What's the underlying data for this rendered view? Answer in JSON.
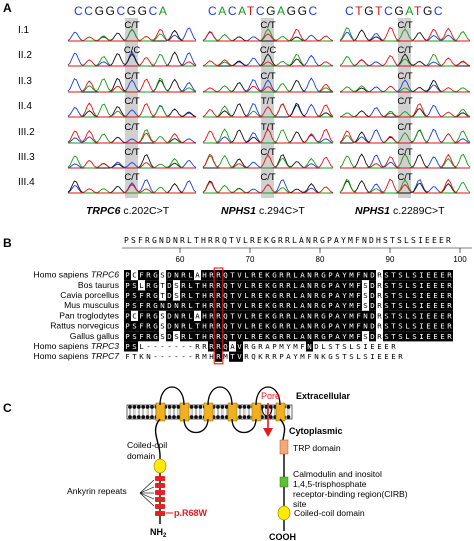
{
  "panels": {
    "a": {
      "letter": "A",
      "sequences": [
        "CCGGCGGCA",
        "CACATCGAGGC",
        "CTGTCGATGC"
      ],
      "row_labels": [
        "I.1",
        "II.2",
        "II.3",
        "II.4",
        "III.2",
        "III.3",
        "III.4"
      ],
      "genotypes": [
        [
          "C/T",
          "C/T",
          "C/T"
        ],
        [
          "C/C",
          "C/C",
          "C/T"
        ],
        [
          "C/T",
          "C/T",
          "C/T"
        ],
        [
          "C/T",
          "T/T",
          "C/T"
        ],
        [
          "C/T",
          "T/T",
          "C/T"
        ],
        [
          "C/T",
          "C/T",
          "C/T"
        ],
        [
          "C/T",
          "C/T",
          "C/T"
        ]
      ],
      "gene_labels": [
        {
          "gene": "TRPC6",
          "variant": "c.202C>T"
        },
        {
          "gene": "NPHS1",
          "variant": "c.294C>T"
        },
        {
          "gene": "NPHS1",
          "variant": "c.2289C>T"
        }
      ]
    },
    "b": {
      "letter": "B",
      "consensus": "PSFRGNDNRLTHRRQTVLREKGRRLANRGPAYMFNDHSTSLSIEEER",
      "ticks": [
        "60",
        "70",
        "80",
        "90",
        "100"
      ],
      "species": [
        {
          "name": "Homo sapiens",
          "gene": "TRPC6"
        },
        {
          "name": "Bos taurus",
          "gene": ""
        },
        {
          "name": "Cavia porcellus",
          "gene": ""
        },
        {
          "name": "Mus musculus",
          "gene": ""
        },
        {
          "name": "Pan troglodytes",
          "gene": ""
        },
        {
          "name": "Rattus norvegicus",
          "gene": ""
        },
        {
          "name": "Gallus gallus",
          "gene": ""
        },
        {
          "name": "Homo sapiens",
          "gene": "TRPC3"
        },
        {
          "name": "Homo sapiens",
          "gene": "TRPC7"
        }
      ],
      "alignment": [
        "PCFRGSDNRLAHRRQTVLREKGRRLANRGPAYMFNDRSTSLSIEEER",
        "PSLRGTDSRLTHRRQTVLREKGRRLANRGPAYMFSDRSTSLSIEEER",
        "PSFRGTDSRLTHRRQTVLREKGRRLANRGPAYMFSDRSTSLSIEEER",
        "PSFRGNDNRLTHRRQTVLREKGRRLANRGPAYMFSDRSTSLSIEEER",
        "PCFRGSDNRLAHRRQTVLREKGRRLANRGPAYMFNDRSTSLSIEEER",
        "PSFRGSDNRLTHRRQTVLREKGRRLANRGPAYMFNDRSTSLSIEEER",
        "PSFRGSDSRLTHRRQTVLREKGRRLANRGPAYMFSDRSTSLSIEEER",
        "PSL-------RRRRQAVRGRAPMYMFNDLSTSLSIEEER",
        "FTKN------RMHRMTVRQKRRPAYMFNKGSTSLSIEEER"
      ]
    },
    "c": {
      "letter": "C",
      "extracellular": "Extracellular",
      "cytoplasmic": "Cytoplasmic",
      "pore": "Pore",
      "coiled_coil_n": "Coiled-coil domain",
      "ankyrin": "Ankyrin repeats",
      "mutation": "p.R68W",
      "nh2": "NH",
      "nh2_sub": "2",
      "trp": "TRP domain",
      "cirb": "Calmodulin and inositol 1,4,5-trisphosphate receptor-binding region(CIRB) site",
      "coiled_coil_c": "Coiled-coil domain",
      "cooh": "COOH"
    }
  }
}
